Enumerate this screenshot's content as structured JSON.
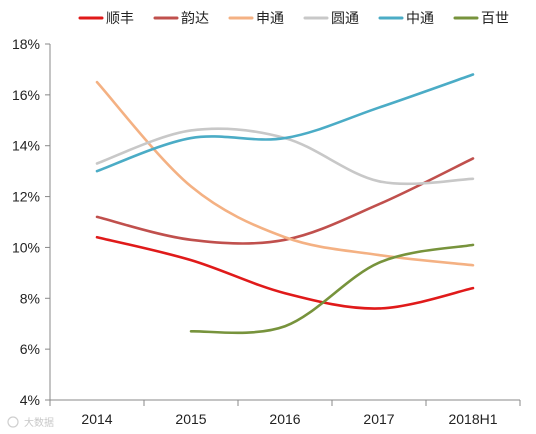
{
  "chart_data": {
    "type": "line",
    "categories": [
      "2014",
      "2015",
      "2016",
      "2017",
      "2018H1"
    ],
    "ylim": [
      0.04,
      0.18
    ],
    "yticks": [
      "4%",
      "6%",
      "8%",
      "10%",
      "12%",
      "14%",
      "16%",
      "18%"
    ],
    "legend_position": "top",
    "grid": false,
    "smooth": true,
    "series": [
      {
        "name": "顺丰",
        "color": "#e01a1a",
        "values": [
          0.104,
          0.095,
          0.082,
          0.076,
          0.084
        ]
      },
      {
        "name": "韵达",
        "color": "#c0504d",
        "values": [
          0.112,
          0.103,
          0.103,
          0.117,
          0.135
        ]
      },
      {
        "name": "申通",
        "color": "#f4b183",
        "values": [
          0.165,
          0.124,
          0.104,
          0.097,
          0.093
        ]
      },
      {
        "name": "圆通",
        "color": "#c8c8c8",
        "values": [
          0.133,
          0.146,
          0.143,
          0.126,
          0.127
        ]
      },
      {
        "name": "中通",
        "color": "#4bacc6",
        "values": [
          0.13,
          0.143,
          0.143,
          0.155,
          0.168
        ]
      },
      {
        "name": "百世",
        "color": "#77933c",
        "values": [
          null,
          0.067,
          0.069,
          0.094,
          0.101
        ]
      }
    ]
  },
  "watermark": "大数据"
}
